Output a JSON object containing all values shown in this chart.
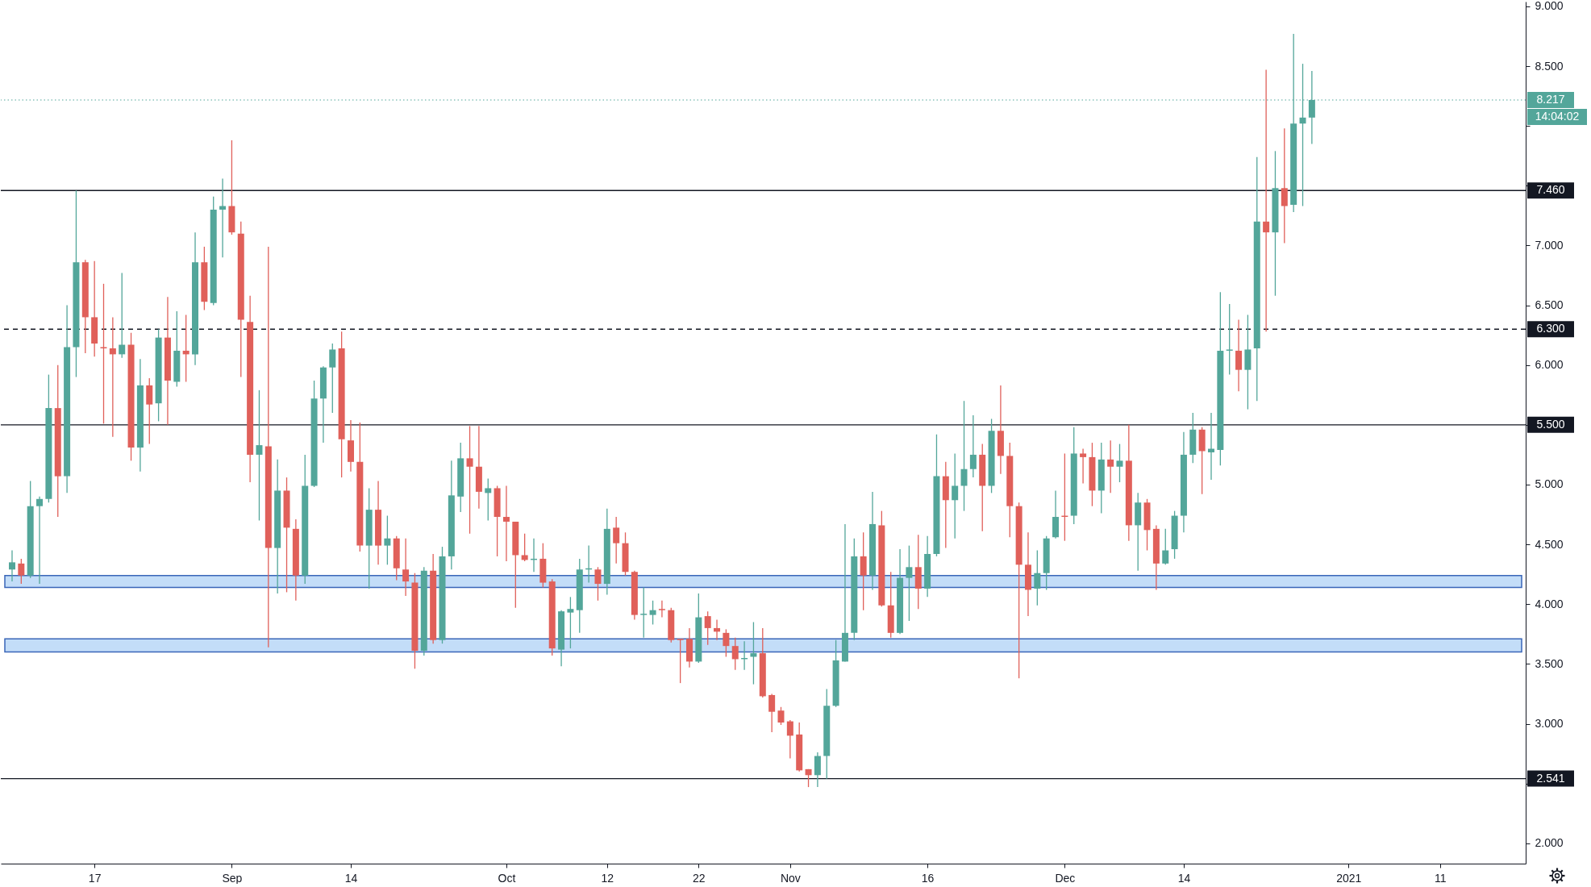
{
  "chart_data": {
    "type": "candlestick",
    "x": [
      "2020-08-08",
      "2020-08-09",
      "2020-08-10",
      "2020-08-11",
      "2020-08-12",
      "2020-08-13",
      "2020-08-14",
      "2020-08-15",
      "2020-08-16",
      "2020-08-17",
      "2020-08-18",
      "2020-08-19",
      "2020-08-20",
      "2020-08-21",
      "2020-08-22",
      "2020-08-23",
      "2020-08-24",
      "2020-08-25",
      "2020-08-26",
      "2020-08-27",
      "2020-08-28",
      "2020-08-29",
      "2020-08-30",
      "2020-08-31",
      "2020-09-01",
      "2020-09-02",
      "2020-09-03",
      "2020-09-04",
      "2020-09-05",
      "2020-09-06",
      "2020-09-07",
      "2020-09-08",
      "2020-09-09",
      "2020-09-10",
      "2020-09-11",
      "2020-09-12",
      "2020-09-13",
      "2020-09-14",
      "2020-09-15",
      "2020-09-16",
      "2020-09-17",
      "2020-09-18",
      "2020-09-19",
      "2020-09-20",
      "2020-09-21",
      "2020-09-22",
      "2020-09-23",
      "2020-09-24",
      "2020-09-25",
      "2020-09-26",
      "2020-09-27",
      "2020-09-28",
      "2020-09-29",
      "2020-09-30",
      "2020-10-01",
      "2020-10-02",
      "2020-10-03",
      "2020-10-04",
      "2020-10-05",
      "2020-10-06",
      "2020-10-07",
      "2020-10-08",
      "2020-10-09",
      "2020-10-10",
      "2020-10-11",
      "2020-10-12",
      "2020-10-13",
      "2020-10-14",
      "2020-10-15",
      "2020-10-16",
      "2020-10-17",
      "2020-10-18",
      "2020-10-19",
      "2020-10-20",
      "2020-10-21",
      "2020-10-22",
      "2020-10-23",
      "2020-10-24",
      "2020-10-25",
      "2020-10-26",
      "2020-10-27",
      "2020-10-28",
      "2020-10-29",
      "2020-10-30",
      "2020-10-31",
      "2020-11-01",
      "2020-11-02",
      "2020-11-03",
      "2020-11-04",
      "2020-11-05",
      "2020-11-06",
      "2020-11-07",
      "2020-11-08",
      "2020-11-09",
      "2020-11-10",
      "2020-11-11",
      "2020-11-12",
      "2020-11-13",
      "2020-11-14",
      "2020-11-15",
      "2020-11-16",
      "2020-11-17",
      "2020-11-18",
      "2020-11-19",
      "2020-11-20",
      "2020-11-21",
      "2020-11-22",
      "2020-11-23",
      "2020-11-24",
      "2020-11-25",
      "2020-11-26",
      "2020-11-27",
      "2020-11-28",
      "2020-11-29",
      "2020-11-30",
      "2020-12-01",
      "2020-12-02",
      "2020-12-03",
      "2020-12-04",
      "2020-12-05",
      "2020-12-06",
      "2020-12-07",
      "2020-12-08",
      "2020-12-09",
      "2020-12-10",
      "2020-12-11",
      "2020-12-12",
      "2020-12-13",
      "2020-12-14",
      "2020-12-15",
      "2020-12-16",
      "2020-12-17",
      "2020-12-18",
      "2020-12-19",
      "2020-12-20",
      "2020-12-21",
      "2020-12-22",
      "2020-12-23",
      "2020-12-24",
      "2020-12-25",
      "2020-12-26",
      "2020-12-27",
      "2020-12-28"
    ],
    "ohlc": [
      [
        4.29,
        4.45,
        4.19,
        4.35
      ],
      [
        4.34,
        4.38,
        4.17,
        4.24
      ],
      [
        4.24,
        5.03,
        4.22,
        4.82
      ],
      [
        4.82,
        4.9,
        4.17,
        4.88
      ],
      [
        4.88,
        5.92,
        4.85,
        5.64
      ],
      [
        5.64,
        6.0,
        4.73,
        5.07
      ],
      [
        5.07,
        6.5,
        4.93,
        6.15
      ],
      [
        6.15,
        7.46,
        5.9,
        6.86
      ],
      [
        6.86,
        6.88,
        6.1,
        6.4
      ],
      [
        6.4,
        6.87,
        6.07,
        6.18
      ],
      [
        6.15,
        6.68,
        5.51,
        6.14
      ],
      [
        6.14,
        6.4,
        5.4,
        6.09
      ],
      [
        6.09,
        6.77,
        6.06,
        6.17
      ],
      [
        6.17,
        6.27,
        5.2,
        5.31
      ],
      [
        5.31,
        6.05,
        5.11,
        5.83
      ],
      [
        5.83,
        5.89,
        5.34,
        5.67
      ],
      [
        5.68,
        6.3,
        5.53,
        6.23
      ],
      [
        6.23,
        6.57,
        5.5,
        5.87
      ],
      [
        5.86,
        6.45,
        5.82,
        6.12
      ],
      [
        6.12,
        6.42,
        5.86,
        6.09
      ],
      [
        6.09,
        7.11,
        6.0,
        6.86
      ],
      [
        6.86,
        6.99,
        6.46,
        6.53
      ],
      [
        6.52,
        7.41,
        6.5,
        7.3
      ],
      [
        7.3,
        7.56,
        6.9,
        7.33
      ],
      [
        7.33,
        7.88,
        7.09,
        7.11
      ],
      [
        7.1,
        7.2,
        5.9,
        6.38
      ],
      [
        6.36,
        6.58,
        5.02,
        5.25
      ],
      [
        5.25,
        5.79,
        4.7,
        5.33
      ],
      [
        5.32,
        6.99,
        3.64,
        4.47
      ],
      [
        4.47,
        5.21,
        4.09,
        4.95
      ],
      [
        4.95,
        5.06,
        4.1,
        4.64
      ],
      [
        4.63,
        4.71,
        4.03,
        4.24
      ],
      [
        4.24,
        5.25,
        4.17,
        4.99
      ],
      [
        4.99,
        5.87,
        4.98,
        5.72
      ],
      [
        5.72,
        5.99,
        5.35,
        5.98
      ],
      [
        5.98,
        6.18,
        5.6,
        6.13
      ],
      [
        6.14,
        6.28,
        5.06,
        5.38
      ],
      [
        5.37,
        5.54,
        5.11,
        5.19
      ],
      [
        5.19,
        5.52,
        4.44,
        4.49
      ],
      [
        4.49,
        4.97,
        4.13,
        4.79
      ],
      [
        4.79,
        5.03,
        4.33,
        4.49
      ],
      [
        4.49,
        4.74,
        4.33,
        4.55
      ],
      [
        4.55,
        4.57,
        4.2,
        4.3
      ],
      [
        4.29,
        4.55,
        4.07,
        4.19
      ],
      [
        4.18,
        4.26,
        3.46,
        3.61
      ],
      [
        3.61,
        4.31,
        3.57,
        4.28
      ],
      [
        4.28,
        4.42,
        3.67,
        3.7
      ],
      [
        3.7,
        4.48,
        3.67,
        4.4
      ],
      [
        4.4,
        5.2,
        4.29,
        4.91
      ],
      [
        4.9,
        5.35,
        4.77,
        5.22
      ],
      [
        5.22,
        5.49,
        4.59,
        5.15
      ],
      [
        5.15,
        5.49,
        4.8,
        4.94
      ],
      [
        4.93,
        5.05,
        4.7,
        4.97
      ],
      [
        4.97,
        4.99,
        4.4,
        4.73
      ],
      [
        4.73,
        4.99,
        4.36,
        4.69
      ],
      [
        4.69,
        4.69,
        3.97,
        4.41
      ],
      [
        4.41,
        4.59,
        4.36,
        4.37
      ],
      [
        4.37,
        4.55,
        4.27,
        4.38
      ],
      [
        4.38,
        4.51,
        4.14,
        4.18
      ],
      [
        4.19,
        4.21,
        3.57,
        3.63
      ],
      [
        3.62,
        3.95,
        3.48,
        3.94
      ],
      [
        3.93,
        4.06,
        3.63,
        3.96
      ],
      [
        3.95,
        4.38,
        3.76,
        4.29
      ],
      [
        4.29,
        4.49,
        4.18,
        4.3
      ],
      [
        4.29,
        4.31,
        4.03,
        4.17
      ],
      [
        4.17,
        4.8,
        4.08,
        4.63
      ],
      [
        4.64,
        4.73,
        4.34,
        4.51
      ],
      [
        4.51,
        4.6,
        4.24,
        4.27
      ],
      [
        4.27,
        4.28,
        3.87,
        3.91
      ],
      [
        3.91,
        4.14,
        3.72,
        3.92
      ],
      [
        3.91,
        4.03,
        3.83,
        3.95
      ],
      [
        3.96,
        4.03,
        3.89,
        3.95
      ],
      [
        3.95,
        3.97,
        3.68,
        3.7
      ],
      [
        3.71,
        3.71,
        3.34,
        3.7
      ],
      [
        3.71,
        3.8,
        3.47,
        3.52
      ],
      [
        3.52,
        4.09,
        3.51,
        3.89
      ],
      [
        3.9,
        3.94,
        3.66,
        3.8
      ],
      [
        3.8,
        3.87,
        3.7,
        3.77
      ],
      [
        3.76,
        3.79,
        3.56,
        3.65
      ],
      [
        3.65,
        3.72,
        3.45,
        3.54
      ],
      [
        3.54,
        3.69,
        3.45,
        3.55
      ],
      [
        3.56,
        3.85,
        3.33,
        3.59
      ],
      [
        3.59,
        3.8,
        3.22,
        3.23
      ],
      [
        3.24,
        3.25,
        2.93,
        3.1
      ],
      [
        3.11,
        3.14,
        2.99,
        3.01
      ],
      [
        3.02,
        3.03,
        2.71,
        2.9
      ],
      [
        2.91,
        3.01,
        2.6,
        2.61
      ],
      [
        2.62,
        2.62,
        2.47,
        2.57
      ],
      [
        2.57,
        2.76,
        2.47,
        2.73
      ],
      [
        2.73,
        3.29,
        2.54,
        3.15
      ],
      [
        3.15,
        3.7,
        3.14,
        3.53
      ],
      [
        3.52,
        4.67,
        3.52,
        3.76
      ],
      [
        3.76,
        4.55,
        3.7,
        4.4
      ],
      [
        4.4,
        4.6,
        3.95,
        4.24
      ],
      [
        4.24,
        4.94,
        4.12,
        4.67
      ],
      [
        4.66,
        4.78,
        3.98,
        3.99
      ],
      [
        3.99,
        4.27,
        3.72,
        3.76
      ],
      [
        3.76,
        4.46,
        3.75,
        4.22
      ],
      [
        4.22,
        4.49,
        3.86,
        4.31
      ],
      [
        4.31,
        4.58,
        3.96,
        4.13
      ],
      [
        4.13,
        4.57,
        4.06,
        4.42
      ],
      [
        4.42,
        5.42,
        4.4,
        5.07
      ],
      [
        5.07,
        5.19,
        4.47,
        4.87
      ],
      [
        4.87,
        5.26,
        4.55,
        4.99
      ],
      [
        4.99,
        5.7,
        4.78,
        5.13
      ],
      [
        5.13,
        5.58,
        5.06,
        5.25
      ],
      [
        5.25,
        5.34,
        4.61,
        4.99
      ],
      [
        4.99,
        5.55,
        4.93,
        5.45
      ],
      [
        5.45,
        5.83,
        5.09,
        5.24
      ],
      [
        5.24,
        5.35,
        4.56,
        4.82
      ],
      [
        4.82,
        4.85,
        3.38,
        4.33
      ],
      [
        4.33,
        4.6,
        3.9,
        4.12
      ],
      [
        4.13,
        4.45,
        3.99,
        4.26
      ],
      [
        4.26,
        4.57,
        4.12,
        4.55
      ],
      [
        4.56,
        4.95,
        4.55,
        4.73
      ],
      [
        4.74,
        5.26,
        4.53,
        4.73
      ],
      [
        4.74,
        5.48,
        4.67,
        5.26
      ],
      [
        5.26,
        5.3,
        5.01,
        5.23
      ],
      [
        5.23,
        5.35,
        4.82,
        4.95
      ],
      [
        4.95,
        5.35,
        4.76,
        5.21
      ],
      [
        5.21,
        5.37,
        4.93,
        5.15
      ],
      [
        5.15,
        5.34,
        5.02,
        5.2
      ],
      [
        5.2,
        5.5,
        4.53,
        4.66
      ],
      [
        4.66,
        4.93,
        4.28,
        4.85
      ],
      [
        4.85,
        4.88,
        4.45,
        4.62
      ],
      [
        4.63,
        4.66,
        4.12,
        4.34
      ],
      [
        4.34,
        4.63,
        4.33,
        4.45
      ],
      [
        4.46,
        4.78,
        4.38,
        4.74
      ],
      [
        4.74,
        5.44,
        4.6,
        5.25
      ],
      [
        5.25,
        5.6,
        5.18,
        5.46
      ],
      [
        5.46,
        5.48,
        4.92,
        5.28
      ],
      [
        5.27,
        5.6,
        5.04,
        5.3
      ],
      [
        5.29,
        6.61,
        5.16,
        6.12
      ],
      [
        6.12,
        6.51,
        5.92,
        6.13
      ],
      [
        6.12,
        6.38,
        5.78,
        5.96
      ],
      [
        5.96,
        6.42,
        5.63,
        6.13
      ],
      [
        6.14,
        7.74,
        5.7,
        7.2
      ],
      [
        7.2,
        8.47,
        6.28,
        7.11
      ],
      [
        7.11,
        7.79,
        6.58,
        7.48
      ],
      [
        7.48,
        7.98,
        7.02,
        7.33
      ],
      [
        7.34,
        8.77,
        7.28,
        8.02
      ],
      [
        8.02,
        8.52,
        7.33,
        8.07
      ],
      [
        8.07,
        8.46,
        7.85,
        8.217
      ]
    ],
    "colors": [
      "#53a69a",
      "#e0605a",
      "#53a69a",
      "#53a69a",
      "#53a69a",
      "#e0605a",
      "#53a69a",
      "#53a69a",
      "#e0605a",
      "#e0605a",
      "#e0605a",
      "#e0605a",
      "#53a69a",
      "#e0605a",
      "#53a69a",
      "#e0605a",
      "#53a69a",
      "#e0605a",
      "#53a69a",
      "#e0605a",
      "#53a69a",
      "#e0605a",
      "#53a69a",
      "#53a69a",
      "#e0605a",
      "#e0605a",
      "#e0605a",
      "#53a69a",
      "#e0605a",
      "#53a69a",
      "#e0605a",
      "#e0605a",
      "#53a69a",
      "#53a69a",
      "#53a69a",
      "#53a69a",
      "#e0605a",
      "#e0605a",
      "#e0605a",
      "#53a69a",
      "#e0605a",
      "#53a69a",
      "#e0605a",
      "#e0605a",
      "#e0605a",
      "#53a69a",
      "#e0605a",
      "#53a69a",
      "#53a69a",
      "#53a69a",
      "#e0605a",
      "#e0605a",
      "#53a69a",
      "#e0605a",
      "#e0605a",
      "#e0605a",
      "#e0605a",
      "#53a69a",
      "#e0605a",
      "#e0605a",
      "#53a69a",
      "#53a69a",
      "#53a69a",
      "#53a69a",
      "#e0605a",
      "#53a69a",
      "#e0605a",
      "#e0605a",
      "#e0605a",
      "#53a69a",
      "#53a69a",
      "#e0605a",
      "#e0605a",
      "#e0605a",
      "#e0605a",
      "#53a69a",
      "#e0605a",
      "#e0605a",
      "#e0605a",
      "#e0605a",
      "#53a69a",
      "#53a69a",
      "#e0605a",
      "#e0605a",
      "#e0605a",
      "#e0605a",
      "#e0605a",
      "#e0605a",
      "#53a69a",
      "#53a69a",
      "#53a69a",
      "#53a69a",
      "#53a69a",
      "#e0605a",
      "#53a69a",
      "#e0605a",
      "#e0605a",
      "#53a69a",
      "#53a69a",
      "#e0605a",
      "#53a69a",
      "#53a69a",
      "#e0605a",
      "#53a69a",
      "#53a69a",
      "#53a69a",
      "#e0605a",
      "#53a69a",
      "#e0605a",
      "#e0605a",
      "#e0605a",
      "#e0605a",
      "#53a69a",
      "#53a69a",
      "#53a69a",
      "#e0605a",
      "#53a69a",
      "#e0605a",
      "#e0605a",
      "#53a69a",
      "#e0605a",
      "#53a69a",
      "#e0605a",
      "#53a69a",
      "#e0605a",
      "#e0605a",
      "#53a69a",
      "#53a69a",
      "#53a69a",
      "#53a69a",
      "#e0605a",
      "#53a69a",
      "#53a69a",
      "#53a69a",
      "#e0605a",
      "#53a69a",
      "#53a69a",
      "#e0605a",
      "#53a69a",
      "#e0605a",
      "#53a69a",
      "#53a69a",
      "#53a69a"
    ],
    "xlim": [
      "2020-08-07T05:00",
      "2021-01-19T22:00"
    ],
    "xticks": [
      {
        "value": "2020-08-17",
        "label": "17"
      },
      {
        "value": "2020-09-01",
        "label": "Sep"
      },
      {
        "value": "2020-09-14",
        "label": "14"
      },
      {
        "value": "2020-10-01",
        "label": "Oct"
      },
      {
        "value": "2020-10-12",
        "label": "12"
      },
      {
        "value": "2020-10-22",
        "label": "22"
      },
      {
        "value": "2020-11-01",
        "label": "Nov"
      },
      {
        "value": "2020-11-16",
        "label": "16"
      },
      {
        "value": "2020-12-01",
        "label": "Dec"
      },
      {
        "value": "2020-12-14",
        "label": "14"
      },
      {
        "value": "2021-01-01",
        "label": "2021"
      },
      {
        "value": "2021-01-11",
        "label": "11"
      }
    ],
    "ylim": [
      1.83,
      9.04
    ],
    "yticks": [
      {
        "value": 2,
        "label": "2.000"
      },
      {
        "value": 2.5,
        "label": null
      },
      {
        "value": 3,
        "label": "3.000"
      },
      {
        "value": 3.5,
        "label": "3.500"
      },
      {
        "value": 4,
        "label": "4.000"
      },
      {
        "value": 4.5,
        "label": "4.500"
      },
      {
        "value": 5,
        "label": "5.000"
      },
      {
        "value": 5.5,
        "label": null
      },
      {
        "value": 6,
        "label": "6.000"
      },
      {
        "value": 6.5,
        "label": "6.500"
      },
      {
        "value": 7,
        "label": "7.000"
      },
      {
        "value": 7.5,
        "label": null
      },
      {
        "value": 8,
        "label": null
      },
      {
        "value": 8.5,
        "label": "8.500"
      },
      {
        "value": 9,
        "label": "9.000"
      }
    ],
    "ref_lines": [
      {
        "axis": "y",
        "value": 8.217,
        "label": "8.217",
        "color": "#53a69a",
        "line_style": "dotted"
      },
      {
        "axis": "y",
        "value": 7.46,
        "label": "7.460",
        "color": "#131722",
        "line_style": "solid"
      },
      {
        "axis": "y",
        "value": 6.3,
        "label": "6.300",
        "color": "#131722",
        "line_style": "dashed"
      },
      {
        "axis": "y",
        "value": 5.5,
        "label": "5.500",
        "color": "#131722",
        "line_style": "solid"
      },
      {
        "axis": "y",
        "value": 2.541,
        "label": "2.541",
        "color": "#131722",
        "line_style": "solid"
      }
    ],
    "bands": [
      {
        "axis": "y",
        "from": 4.14,
        "to": 4.24,
        "color": "#c3ddf8"
      },
      {
        "axis": "y",
        "from": 3.6,
        "to": 3.71,
        "color": "#c3ddf8"
      }
    ],
    "annotations": [
      "14:04:02"
    ]
  }
}
